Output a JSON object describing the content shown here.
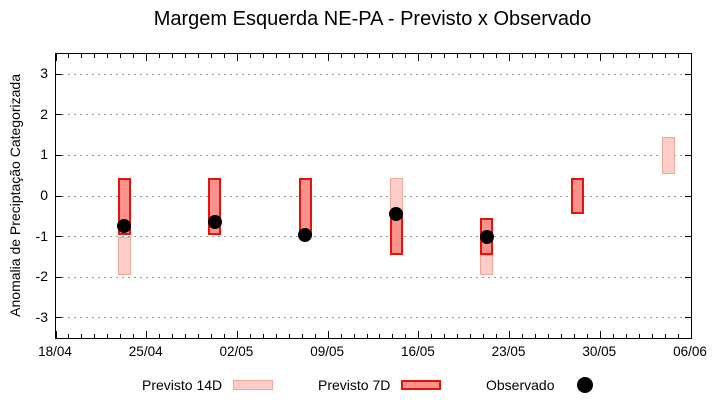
{
  "title": "Margem Esquerda NE-PA - Previsto x Observado",
  "chart_data": {
    "type": "bar",
    "subtype": "forecast-range-bars-with-observed-points",
    "title": "Margem Esquerda NE-PA - Previsto x Observado",
    "xlabel": "",
    "ylabel": "Anomalia de Preciptação Categorizada",
    "ylim": [
      -3.5,
      3.5
    ],
    "yticks": [
      3,
      2,
      1,
      0,
      -1,
      -2,
      -3
    ],
    "grid": "horizontal-dotted",
    "grid_color": "#999999",
    "x_axis": {
      "total_days": 49,
      "minor_tick_every": 1,
      "major_ticks": [
        {
          "day": 0,
          "label": "18/04"
        },
        {
          "day": 7,
          "label": "25/04"
        },
        {
          "day": 14,
          "label": "02/05"
        },
        {
          "day": 21,
          "label": "09/05"
        },
        {
          "day": 28,
          "label": "16/05"
        },
        {
          "day": 35,
          "label": "23/05"
        },
        {
          "day": 42,
          "label": "30/05"
        },
        {
          "day": 49,
          "label": "06/06"
        }
      ]
    },
    "series": [
      {
        "name": "Previsto 14D",
        "type": "range",
        "fill": "#fbcdc6",
        "border": "#f2a69a",
        "bars": [
          {
            "day": 5.25,
            "from": -1.95,
            "to": -1.0
          },
          {
            "day": 26.25,
            "from": -0.5,
            "to": 0.45
          },
          {
            "day": 33.25,
            "from": -1.95,
            "to": -1.45
          },
          {
            "day": 47.25,
            "from": 0.55,
            "to": 1.45
          }
        ]
      },
      {
        "name": "Previsto 7D",
        "type": "range",
        "fill": "#fa938d",
        "border": "#e9120b",
        "bars": [
          {
            "day": 5.25,
            "from": -0.95,
            "to": 0.45
          },
          {
            "day": 12.25,
            "from": -0.95,
            "to": 0.45
          },
          {
            "day": 19.25,
            "from": -0.95,
            "to": 0.45
          },
          {
            "day": 26.25,
            "from": -1.45,
            "to": -0.5
          },
          {
            "day": 33.25,
            "from": -1.45,
            "to": -0.55
          },
          {
            "day": 40.25,
            "from": -0.45,
            "to": 0.45
          }
        ]
      },
      {
        "name": "Observado",
        "type": "points",
        "color": "#000000",
        "points": [
          {
            "day": 5.25,
            "value": -0.75
          },
          {
            "day": 12.25,
            "value": -0.65
          },
          {
            "day": 19.25,
            "value": -0.95
          },
          {
            "day": 26.25,
            "value": -0.45
          },
          {
            "day": 33.25,
            "value": -1.0
          }
        ]
      }
    ],
    "legend": {
      "position": "bottom",
      "items": [
        "Previsto 14D",
        "Previsto 7D",
        "Observado"
      ]
    }
  }
}
